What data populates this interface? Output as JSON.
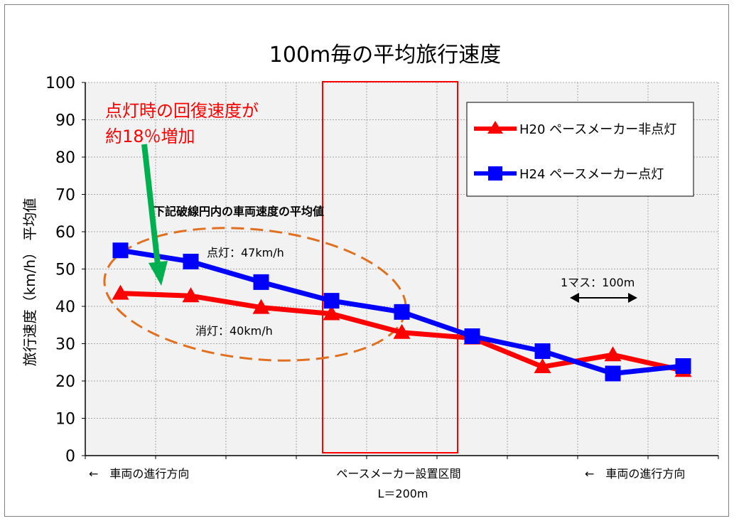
{
  "chart_data": {
    "type": "line",
    "title": "100m毎の平均旅行速度",
    "ylabel": "旅行速度（km/h） 平均値",
    "ylim": [
      0,
      100
    ],
    "yticks": [
      0,
      10,
      20,
      30,
      40,
      50,
      60,
      70,
      80,
      90,
      100
    ],
    "x": [
      1,
      2,
      3,
      4,
      5,
      6,
      7,
      8,
      9
    ],
    "grid": true,
    "legend_position": "top-right",
    "series": [
      {
        "name": "H20 ペースメーカー非点灯",
        "color": "#ff0000",
        "marker": "triangle",
        "values": [
          43.5,
          42.8,
          39.7,
          38,
          33,
          31.5,
          23.8,
          27,
          22.8
        ]
      },
      {
        "name": "H24 ペースメーカー点灯",
        "color": "#0000ff",
        "marker": "square",
        "values": [
          55,
          52,
          46.5,
          41.5,
          38.5,
          32,
          28,
          22,
          24
        ]
      }
    ],
    "annotations": {
      "recovery_line1": "点灯時の回復速度が",
      "recovery_line2": "約18％増加",
      "ellipse_caption": "下記破線円内の車両速度の平均値",
      "lit_avg": "点灯：47km/h",
      "unlit_avg": "消灯：40km/h",
      "grid_unit": "1マス：100m",
      "direction_left": "←　車両の進行方向",
      "section_label": "ペースメーカー設置区間",
      "section_length": "L＝200m",
      "direction_right": "←　車両の進行方向"
    },
    "colors": {
      "plot_bg": "#f2f2f2",
      "grid": "#a6a6a6",
      "highlight_box": "#ff0000",
      "ellipse": "#e07020",
      "arrow": "#00b050",
      "annotation_text": "#ff0000"
    }
  }
}
